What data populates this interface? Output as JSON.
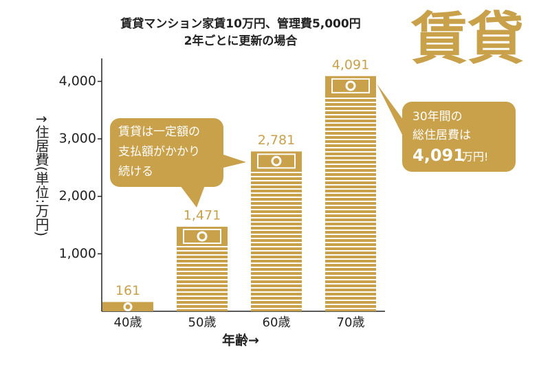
{
  "chart_data": {
    "type": "bar",
    "title": "賃貸マンション家賃10万円、管理費5,000円",
    "subtitle": "2年ごとに更新の場合",
    "badge": "賃貸",
    "y_label": "↑住居費(単位:万円)",
    "x_label": "年齢→",
    "categories": [
      "40歳",
      "50歳",
      "60歳",
      "70歳"
    ],
    "values": [
      161,
      1471,
      2781,
      4091
    ],
    "value_labels": [
      "161",
      "1,471",
      "2,781",
      "4,091"
    ],
    "color": "#c9a14a",
    "ylim": [
      0,
      4400
    ],
    "yticks": [
      {
        "value": 1000,
        "label": "1,000"
      },
      {
        "value": 2000,
        "label": "2,000"
      },
      {
        "value": 3000,
        "label": "3,000"
      },
      {
        "value": 4000,
        "label": "4,000"
      }
    ],
    "annotations": {
      "callout_left": [
        "賃貸は一定額の",
        "支払額がかかり",
        "続ける"
      ],
      "callout_right": {
        "lines": [
          "30年間の",
          "総住居費は"
        ],
        "total": "4,091",
        "unit": "万円!"
      }
    }
  }
}
